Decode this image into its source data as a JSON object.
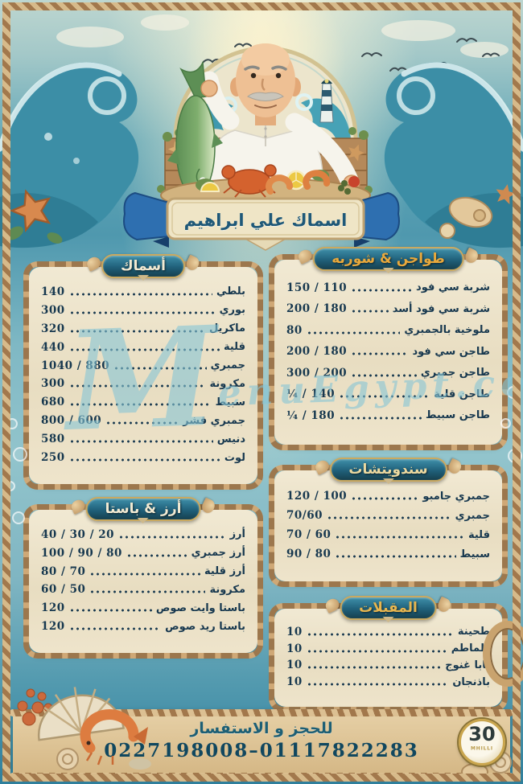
{
  "meta": {
    "restaurant_name": "اسماك علي ابراهيم",
    "watermark": "MenuEgypt.com"
  },
  "theme": {
    "header_bg": "#20607a",
    "header_border": "#caa95f",
    "item_text": "#17384f",
    "panel_cream": "#ece4cd",
    "rope": "#c9a36e",
    "ribbon_blue": "#2e6fb0",
    "watermark_blue": "#85c5d6",
    "ocean_teal": "#4f98ae"
  },
  "sections": [
    {
      "id": "fish",
      "title": "أسماك",
      "title_color": "#f2ead2",
      "items": [
        {
          "name": "بلطي",
          "price": "140"
        },
        {
          "name": "بوري",
          "price": "300"
        },
        {
          "name": "ماكريل",
          "price": "320"
        },
        {
          "name": "قلية",
          "price": "440"
        },
        {
          "name": "جمبري",
          "price": "1040 / 880"
        },
        {
          "name": "مكرونة",
          "price": "300"
        },
        {
          "name": "سبيط",
          "price": "680"
        },
        {
          "name": "جمبري قشر",
          "price": "800 / 600"
        },
        {
          "name": "دنيس",
          "price": "580"
        },
        {
          "name": "لوت",
          "price": "250"
        }
      ]
    },
    {
      "id": "tagines_soup",
      "title": "طواجن & شوربه",
      "title_color": "#e8a83c",
      "items": [
        {
          "name": "شربة سي فود",
          "price": "150 / 110"
        },
        {
          "name": "شربة سي فود أسد",
          "price": "200 / 180"
        },
        {
          "name": "ملوخية بالجمبري",
          "price": "80"
        },
        {
          "name": "طاجن سي فود",
          "price": "200 / 180"
        },
        {
          "name": "طاجن جمبري",
          "price": "300 / 200"
        },
        {
          "name": "طاجن قلية",
          "price": "¼ / 140"
        },
        {
          "name": "طاجن سبيط",
          "price": "¼ / 180"
        }
      ]
    },
    {
      "id": "rice_pasta",
      "title": "أرز & باستا",
      "title_color": "#f2ead2",
      "items": [
        {
          "name": "أرز",
          "price": "40 / 30 / 20"
        },
        {
          "name": "أرز جمبري",
          "price": "100 / 90 / 80"
        },
        {
          "name": "أرز قلية",
          "price": "80 / 70"
        },
        {
          "name": "مكرونة",
          "price": "60 / 50"
        },
        {
          "name": "باستا وايت صوص",
          "price": "120"
        },
        {
          "name": "باستا ريد صوص",
          "price": "120"
        }
      ]
    },
    {
      "id": "sandwiches",
      "title": "سندويتشات",
      "title_color": "#ecd9a0",
      "items": [
        {
          "name": "جمبري جامبو",
          "price": "120 / 100"
        },
        {
          "name": "جمبري",
          "price": "70/60"
        },
        {
          "name": "قلية",
          "price": "70 / 60"
        },
        {
          "name": "سبيط",
          "price": "90 / 80"
        }
      ]
    },
    {
      "id": "appetizers",
      "title": "المقبلات",
      "title_color": "#e8b64f",
      "items": [
        {
          "name": "طحينة",
          "price": "10"
        },
        {
          "name": "طماطم",
          "price": "10"
        },
        {
          "name": "بابا غنوج",
          "price": "10"
        },
        {
          "name": "باذنجان",
          "price": "10"
        }
      ]
    }
  ],
  "footer": {
    "label": "للحجز و الاستفسار",
    "phones": "0227198008–01117822283"
  },
  "badge": {
    "value": "30",
    "sub": "MHILLI"
  }
}
